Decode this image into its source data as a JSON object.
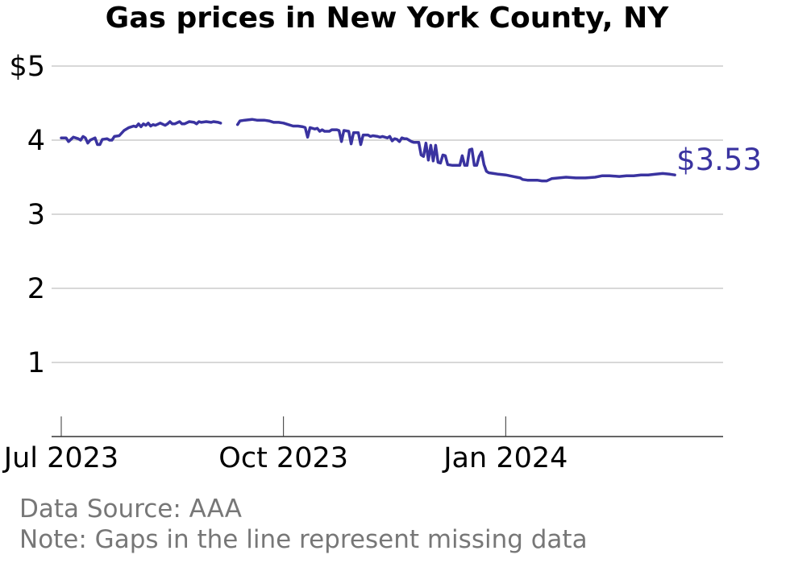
{
  "chart_data": {
    "type": "line",
    "title": "Gas prices in New York County, NY",
    "xlabel": "",
    "ylabel": "",
    "ylim": [
      0,
      5
    ],
    "y_ticks": [
      1,
      2,
      3,
      4,
      5
    ],
    "y_tick_labels": [
      "1",
      "2",
      "3",
      "4",
      "$5"
    ],
    "x_range": [
      "2023-06-27",
      "2024-03-31"
    ],
    "x_ticks": [
      {
        "date": "2023-07-01",
        "label": "Jul 2023"
      },
      {
        "date": "2023-10-01",
        "label": "Oct 2023"
      },
      {
        "date": "2024-01-01",
        "label": "Jan 2024"
      }
    ],
    "grid": "horizontal",
    "series": [
      {
        "color": "#3a33a0",
        "end_label": "$3.53",
        "segments": [
          [
            [
              "2023-07-01",
              4.03
            ],
            [
              "2023-07-03",
              4.03
            ],
            [
              "2023-07-04",
              3.98
            ],
            [
              "2023-07-06",
              4.04
            ],
            [
              "2023-07-08",
              4.02
            ],
            [
              "2023-07-09",
              4.0
            ],
            [
              "2023-07-10",
              4.05
            ],
            [
              "2023-07-11",
              4.03
            ],
            [
              "2023-07-12",
              3.96
            ],
            [
              "2023-07-13",
              4.0
            ],
            [
              "2023-07-15",
              4.03
            ],
            [
              "2023-07-16",
              3.94
            ],
            [
              "2023-07-17",
              3.94
            ],
            [
              "2023-07-18",
              4.01
            ],
            [
              "2023-07-20",
              4.02
            ],
            [
              "2023-07-21",
              4.0
            ],
            [
              "2023-07-22",
              4.0
            ],
            [
              "2023-07-23",
              4.05
            ],
            [
              "2023-07-25",
              4.06
            ],
            [
              "2023-07-27",
              4.13
            ],
            [
              "2023-07-29",
              4.17
            ],
            [
              "2023-07-31",
              4.19
            ],
            [
              "2023-08-01",
              4.18
            ],
            [
              "2023-08-02",
              4.22
            ],
            [
              "2023-08-03",
              4.18
            ],
            [
              "2023-08-04",
              4.22
            ],
            [
              "2023-08-05",
              4.2
            ],
            [
              "2023-08-06",
              4.23
            ],
            [
              "2023-08-07",
              4.19
            ],
            [
              "2023-08-08",
              4.21
            ],
            [
              "2023-08-09",
              4.2
            ],
            [
              "2023-08-11",
              4.23
            ],
            [
              "2023-08-13",
              4.2
            ],
            [
              "2023-08-14",
              4.22
            ],
            [
              "2023-08-15",
              4.25
            ],
            [
              "2023-08-16",
              4.22
            ],
            [
              "2023-08-17",
              4.22
            ],
            [
              "2023-08-19",
              4.25
            ],
            [
              "2023-08-20",
              4.22
            ],
            [
              "2023-08-21",
              4.22
            ],
            [
              "2023-08-23",
              4.25
            ],
            [
              "2023-08-25",
              4.24
            ],
            [
              "2023-08-26",
              4.22
            ],
            [
              "2023-08-27",
              4.25
            ],
            [
              "2023-08-28",
              4.24
            ],
            [
              "2023-08-30",
              4.25
            ],
            [
              "2023-09-01",
              4.24
            ],
            [
              "2023-09-02",
              4.25
            ],
            [
              "2023-09-04",
              4.24
            ],
            [
              "2023-09-05",
              4.23
            ]
          ],
          [
            [
              "2023-09-12",
              4.21
            ],
            [
              "2023-09-13",
              4.26
            ],
            [
              "2023-09-15",
              4.27
            ],
            [
              "2023-09-18",
              4.28
            ],
            [
              "2023-09-20",
              4.27
            ],
            [
              "2023-09-23",
              4.27
            ],
            [
              "2023-09-25",
              4.26
            ],
            [
              "2023-09-27",
              4.24
            ],
            [
              "2023-09-29",
              4.24
            ],
            [
              "2023-10-01",
              4.23
            ],
            [
              "2023-10-03",
              4.21
            ],
            [
              "2023-10-05",
              4.19
            ],
            [
              "2023-10-07",
              4.19
            ],
            [
              "2023-10-09",
              4.18
            ],
            [
              "2023-10-10",
              4.17
            ],
            [
              "2023-10-11",
              4.04
            ],
            [
              "2023-10-12",
              4.17
            ],
            [
              "2023-10-14",
              4.15
            ],
            [
              "2023-10-15",
              4.16
            ],
            [
              "2023-10-16",
              4.12
            ],
            [
              "2023-10-17",
              4.14
            ],
            [
              "2023-10-18",
              4.12
            ],
            [
              "2023-10-20",
              4.12
            ],
            [
              "2023-10-21",
              4.14
            ],
            [
              "2023-10-23",
              4.14
            ],
            [
              "2023-10-24",
              4.13
            ],
            [
              "2023-10-25",
              3.98
            ],
            [
              "2023-10-26",
              4.13
            ],
            [
              "2023-10-28",
              4.12
            ],
            [
              "2023-10-29",
              3.95
            ],
            [
              "2023-10-30",
              4.1
            ],
            [
              "2023-11-01",
              4.1
            ],
            [
              "2023-11-02",
              3.94
            ],
            [
              "2023-11-03",
              4.07
            ],
            [
              "2023-11-05",
              4.07
            ],
            [
              "2023-11-06",
              4.05
            ],
            [
              "2023-11-07",
              4.06
            ],
            [
              "2023-11-09",
              4.05
            ],
            [
              "2023-11-10",
              4.04
            ],
            [
              "2023-11-11",
              4.05
            ],
            [
              "2023-11-13",
              4.03
            ],
            [
              "2023-11-14",
              4.05
            ],
            [
              "2023-11-15",
              3.99
            ],
            [
              "2023-11-16",
              4.02
            ],
            [
              "2023-11-17",
              4.01
            ],
            [
              "2023-11-18",
              3.98
            ],
            [
              "2023-11-19",
              4.03
            ],
            [
              "2023-11-20",
              4.02
            ],
            [
              "2023-11-21",
              4.02
            ],
            [
              "2023-11-23",
              3.98
            ],
            [
              "2023-11-24",
              3.97
            ],
            [
              "2023-11-26",
              3.97
            ],
            [
              "2023-11-27",
              3.8
            ],
            [
              "2023-11-28",
              3.78
            ],
            [
              "2023-11-29",
              3.96
            ],
            [
              "2023-11-30",
              3.73
            ],
            [
              "2023-12-01",
              3.93
            ],
            [
              "2023-12-02",
              3.72
            ],
            [
              "2023-12-03",
              3.93
            ],
            [
              "2023-12-04",
              3.7
            ],
            [
              "2023-12-05",
              3.69
            ],
            [
              "2023-12-06",
              3.8
            ],
            [
              "2023-12-07",
              3.79
            ],
            [
              "2023-12-08",
              3.67
            ],
            [
              "2023-12-10",
              3.66
            ],
            [
              "2023-12-12",
              3.66
            ],
            [
              "2023-12-13",
              3.66
            ],
            [
              "2023-12-14",
              3.79
            ],
            [
              "2023-12-15",
              3.66
            ],
            [
              "2023-12-16",
              3.66
            ],
            [
              "2023-12-17",
              3.87
            ],
            [
              "2023-12-18",
              3.88
            ],
            [
              "2023-12-19",
              3.66
            ],
            [
              "2023-12-20",
              3.66
            ],
            [
              "2023-12-21",
              3.78
            ],
            [
              "2023-12-22",
              3.84
            ],
            [
              "2023-12-23",
              3.67
            ],
            [
              "2023-12-24",
              3.58
            ],
            [
              "2023-12-25",
              3.56
            ],
            [
              "2023-12-27",
              3.55
            ],
            [
              "2023-12-29",
              3.54
            ],
            [
              "2024-01-01",
              3.53
            ],
            [
              "2024-01-04",
              3.51
            ],
            [
              "2024-01-07",
              3.49
            ],
            [
              "2024-01-08",
              3.47
            ],
            [
              "2024-01-10",
              3.46
            ],
            [
              "2024-01-12",
              3.46
            ],
            [
              "2024-01-14",
              3.46
            ],
            [
              "2024-01-16",
              3.45
            ],
            [
              "2024-01-18",
              3.45
            ],
            [
              "2024-01-20",
              3.48
            ],
            [
              "2024-01-23",
              3.49
            ],
            [
              "2024-01-26",
              3.5
            ],
            [
              "2024-01-30",
              3.49
            ],
            [
              "2024-02-03",
              3.49
            ],
            [
              "2024-02-07",
              3.5
            ],
            [
              "2024-02-10",
              3.52
            ],
            [
              "2024-02-13",
              3.52
            ],
            [
              "2024-02-17",
              3.51
            ],
            [
              "2024-02-20",
              3.52
            ],
            [
              "2024-02-23",
              3.52
            ],
            [
              "2024-02-26",
              3.53
            ],
            [
              "2024-02-29",
              3.53
            ],
            [
              "2024-03-03",
              3.54
            ],
            [
              "2024-03-06",
              3.55
            ],
            [
              "2024-03-09",
              3.54
            ],
            [
              "2024-03-11",
              3.53
            ]
          ]
        ]
      }
    ]
  },
  "footer": {
    "source": "Data Source: AAA",
    "note": "Note: Gaps in the line represent missing data"
  }
}
